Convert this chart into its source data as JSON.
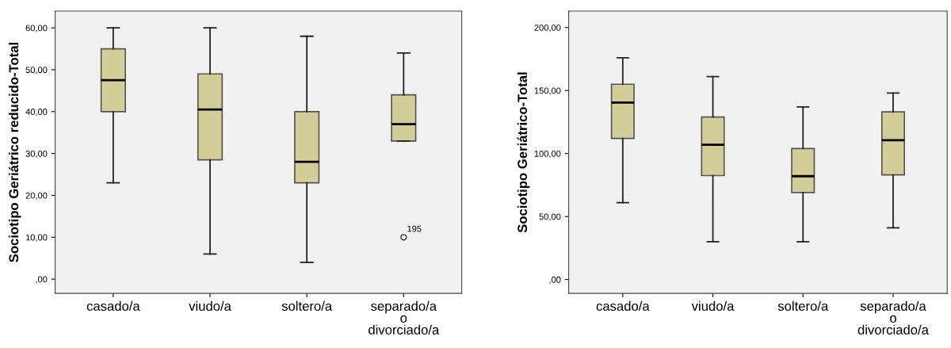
{
  "chart_data": [
    {
      "type": "box",
      "ylabel": "Sociotipo Geriátrico reducido-Total",
      "categories": [
        "casado/a",
        "viudo/a",
        "soltero/a",
        "separado/a o divorciado/a"
      ],
      "color": "#d3ce97",
      "grid": false,
      "boxes": [
        {
          "low": 23,
          "q1": 40,
          "median": 47.5,
          "q3": 55,
          "high": 60
        },
        {
          "low": 6,
          "q1": 28.5,
          "median": 40.5,
          "q3": 49,
          "high": 60
        },
        {
          "low": 4,
          "q1": 23,
          "median": 28,
          "q3": 40,
          "high": 58
        },
        {
          "low": 33,
          "q1": 33,
          "median": 37,
          "q3": 44,
          "high": 54,
          "outliers": [
            10
          ]
        }
      ],
      "annotations": [
        "195"
      ],
      "ylim": [
        -3.4,
        64
      ],
      "yticks": [
        {
          "value": 0,
          "label": ",00"
        },
        {
          "value": 10,
          "label": "10,00"
        },
        {
          "value": 20,
          "label": "20,00"
        },
        {
          "value": 30,
          "label": "30,00"
        },
        {
          "value": 40,
          "label": "40,00"
        },
        {
          "value": 50,
          "label": "50,00"
        },
        {
          "value": 60,
          "label": "60,00"
        }
      ]
    },
    {
      "type": "box",
      "ylabel": "Sociotipo Geriátrico-Total",
      "categories": [
        "casado/a",
        "viudo/a",
        "soltero/a",
        "separado/a o divorciado/a"
      ],
      "color": "#d3ce97",
      "grid": false,
      "boxes": [
        {
          "low": 61,
          "q1": 112,
          "median": 140.5,
          "q3": 155,
          "high": 176
        },
        {
          "low": 30,
          "q1": 82.5,
          "median": 107,
          "q3": 129,
          "high": 161
        },
        {
          "low": 30,
          "q1": 69,
          "median": 82,
          "q3": 104,
          "high": 137
        },
        {
          "low": 41,
          "q1": 83,
          "median": 110.5,
          "q3": 133,
          "high": 148
        }
      ],
      "ylim": [
        -11,
        213
      ],
      "yticks": [
        {
          "value": 0,
          "label": ",00"
        },
        {
          "value": 50,
          "label": "50,00"
        },
        {
          "value": 100,
          "label": "100,00"
        },
        {
          "value": 150,
          "label": "150,00"
        },
        {
          "value": 200,
          "label": "200,00"
        }
      ]
    }
  ]
}
